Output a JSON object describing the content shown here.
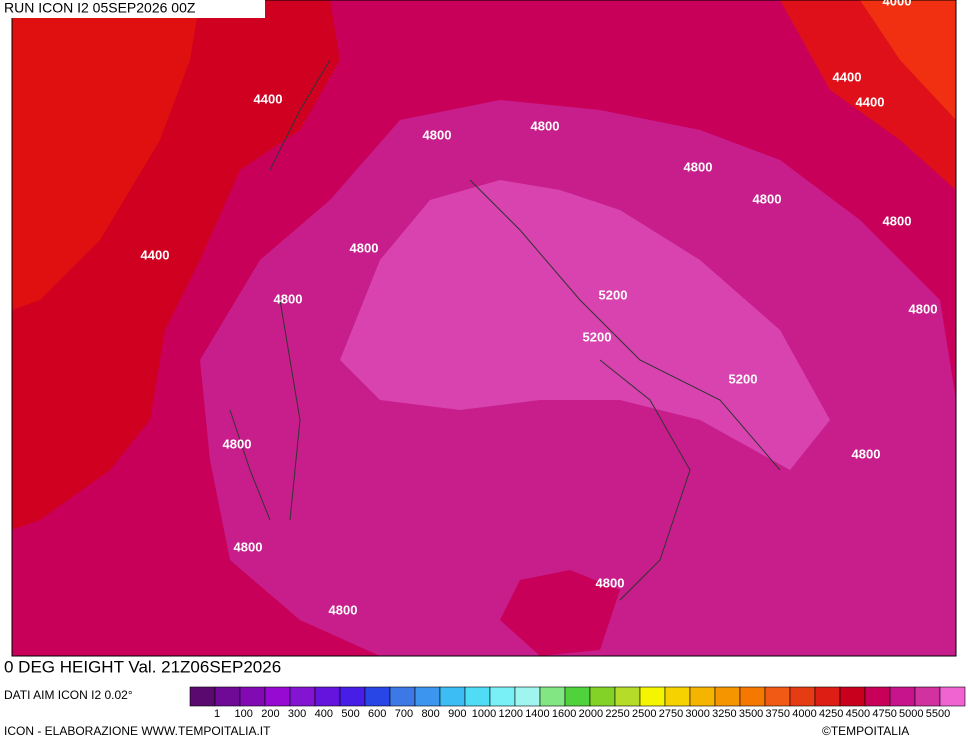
{
  "header": {
    "run": "RUN ICON I2 05SEP2026 00Z"
  },
  "map": {
    "contour_labels": [
      "4000",
      "4400",
      "4400",
      "4400",
      "4400",
      "4800",
      "4800",
      "4800",
      "4800",
      "4800",
      "4800",
      "4800",
      "4800",
      "5200",
      "5200",
      "5200",
      "4800",
      "4800",
      "4800",
      "4800",
      "4800"
    ]
  },
  "footer": {
    "title": "0 DEG HEIGHT Val. 21Z06SEP2026",
    "source": "DATI AIM ICON I2 0.02°"
  },
  "legend": {
    "colors": [
      "#5a0a6e",
      "#6e0a96",
      "#820ab4",
      "#960ad2",
      "#8214d2",
      "#6414dc",
      "#461ee6",
      "#2846e6",
      "#3c78e6",
      "#3c96f0",
      "#3cbef5",
      "#50dcf5",
      "#78f0f5",
      "#a0f5f0",
      "#82e682",
      "#50d23c",
      "#82d228",
      "#b4dc28",
      "#f5f500",
      "#f5d200",
      "#f5b400",
      "#f59600",
      "#f57800",
      "#f05a14",
      "#e63c14",
      "#dc1e14",
      "#c8001e",
      "#c8005a",
      "#c8148c",
      "#d232a0",
      "#f064d2"
    ],
    "labels": [
      "1",
      "100",
      "200",
      "300",
      "400",
      "500",
      "600",
      "700",
      "800",
      "900",
      "1000",
      "1200",
      "1400",
      "1600",
      "2000",
      "2250",
      "2500",
      "2750",
      "3000",
      "3250",
      "3500",
      "3750",
      "4000",
      "4250",
      "4500",
      "4750",
      "5000",
      "5500"
    ]
  },
  "credits": {
    "left": "ICON - ELABORAZIONE WWW.TEMPOITALIA.IT",
    "right": "©TEMPOITALIA"
  }
}
